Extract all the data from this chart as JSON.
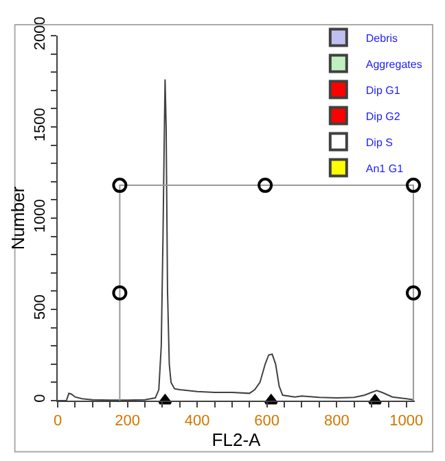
{
  "chart_data": {
    "type": "line",
    "xlabel": "FL2-A",
    "ylabel": "Number",
    "xlim": [
      0,
      1024
    ],
    "ylim": [
      0,
      2000
    ],
    "xticks": [
      0,
      {
        "value": 50,
        "label": null
      },
      {
        "value": 100,
        "label": null
      },
      {
        "value": 150,
        "label": null
      },
      200,
      {
        "value": 250,
        "label": null
      },
      {
        "value": 300,
        "label": null
      },
      {
        "value": 350,
        "label": null
      },
      400,
      {
        "value": 450,
        "label": null
      },
      {
        "value": 500,
        "label": null
      },
      {
        "value": 550,
        "label": null
      },
      600,
      {
        "value": 650,
        "label": null
      },
      {
        "value": 700,
        "label": null
      },
      {
        "value": 750,
        "label": null
      },
      800,
      {
        "value": 850,
        "label": null
      },
      {
        "value": 900,
        "label": null
      },
      {
        "value": 950,
        "label": null
      },
      1000
    ],
    "yticks": [
      0,
      {
        "value": 100,
        "label": null
      },
      {
        "value": 200,
        "label": null
      },
      {
        "value": 300,
        "label": null
      },
      {
        "value": 400,
        "label": null
      },
      500,
      {
        "value": 600,
        "label": null
      },
      {
        "value": 700,
        "label": null
      },
      {
        "value": 800,
        "label": null
      },
      {
        "value": 900,
        "label": null
      },
      1000,
      {
        "value": 1100,
        "label": null
      },
      {
        "value": 1200,
        "label": null
      },
      {
        "value": 1300,
        "label": null
      },
      {
        "value": 1400,
        "label": null
      },
      1500,
      {
        "value": 1600,
        "label": null
      },
      {
        "value": 1700,
        "label": null
      },
      {
        "value": 1800,
        "label": null
      },
      {
        "value": 1900,
        "label": null
      },
      2000
    ],
    "legend": "top right",
    "series": [
      {
        "color": "#404040",
        "marker": "none",
        "x": [
          0,
          25,
          32,
          40,
          50,
          70,
          100,
          150,
          200,
          250,
          280,
          290,
          297,
          302,
          306,
          308,
          311,
          315,
          320,
          325,
          335,
          350,
          400,
          450,
          500,
          550,
          565,
          580,
          595,
          605,
          615,
          625,
          635,
          645,
          680,
          700,
          750,
          800,
          850,
          880,
          900,
          915,
          930,
          960,
          1000,
          1020
        ],
        "values": [
          0,
          0,
          40,
          35,
          20,
          10,
          5,
          3,
          3,
          5,
          15,
          60,
          300,
          900,
          1500,
          1760,
          1500,
          600,
          200,
          100,
          65,
          60,
          50,
          45,
          45,
          40,
          60,
          100,
          200,
          250,
          255,
          200,
          80,
          30,
          20,
          25,
          18,
          15,
          18,
          30,
          45,
          55,
          45,
          20,
          10,
          5
        ]
      },
      {
        "type": "line",
        "color": "#999999",
        "marker": "none",
        "x": [
          178,
          178,
          1020,
          1020
        ],
        "values": [
          0,
          1180,
          1180,
          0
        ]
      },
      {
        "type": "scatter",
        "color": "#000000",
        "marker": "circle",
        "x": [
          178,
          595,
          1020,
          178,
          1020
        ],
        "values": [
          1180,
          1180,
          1180,
          590,
          590
        ]
      },
      {
        "type": "scatter",
        "color": "#000000",
        "marker": "triangle",
        "x": [
          308,
          612,
          910
        ],
        "values": [
          0,
          0,
          0
        ]
      },
      {
        "type": "bar",
        "name": "Debris",
        "color": "#c0c0f0",
        "values": [
          null
        ]
      },
      {
        "type": "bar",
        "name": "Aggregates",
        "color": "#c0f0c0",
        "values": [
          null
        ]
      },
      {
        "type": "bar",
        "name": "Dip G1",
        "color": "#ff0000",
        "values": [
          null
        ]
      },
      {
        "type": "bar",
        "name": "Dip G2",
        "color": "#ff0000",
        "values": [
          null
        ]
      },
      {
        "type": "bar",
        "name": "Dip S",
        "color": "#ffffff",
        "values": [
          null
        ]
      },
      {
        "type": "bar",
        "name": "An1 G1",
        "color": "#ffff00",
        "values": [
          null
        ]
      }
    ]
  }
}
